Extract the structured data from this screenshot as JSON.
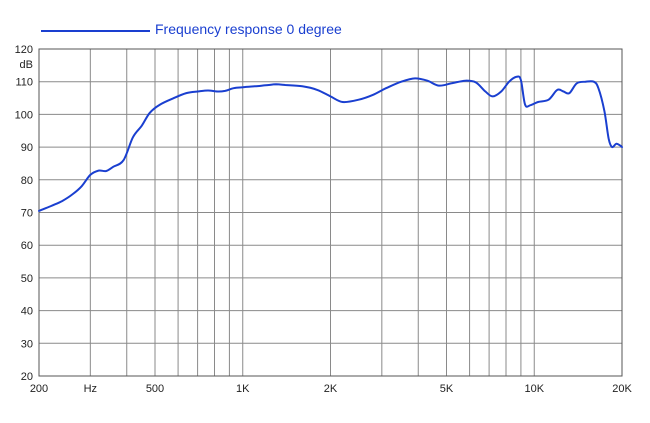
{
  "chart_data": {
    "type": "line",
    "title": "",
    "xlabel": "",
    "ylabel": "",
    "x_scale": "log",
    "y_unit_label": "dB",
    "xlim": [
      200,
      20000
    ],
    "ylim": [
      20,
      120
    ],
    "grid": true,
    "legend_position": "top-left",
    "accent_color": "#1a3fd0",
    "x_ticks": [
      {
        "value": 200,
        "label": "200"
      },
      {
        "value": 300,
        "label": "Hz"
      },
      {
        "value": 500,
        "label": "500"
      },
      {
        "value": 1000,
        "label": "1K"
      },
      {
        "value": 2000,
        "label": "2K"
      },
      {
        "value": 5000,
        "label": "5K"
      },
      {
        "value": 10000,
        "label": "10K"
      },
      {
        "value": 20000,
        "label": "20K"
      }
    ],
    "x_gridlines": [
      300,
      400,
      500,
      600,
      700,
      800,
      900,
      1000,
      2000,
      3000,
      4000,
      5000,
      6000,
      7000,
      8000,
      9000,
      10000
    ],
    "y_ticks": [
      20,
      30,
      40,
      50,
      60,
      70,
      80,
      90,
      100,
      110,
      120
    ],
    "series": [
      {
        "name": "Frequency response 0 degree",
        "color": "#1a3fd0",
        "points": [
          [
            200,
            70.5
          ],
          [
            220,
            72.0
          ],
          [
            240,
            73.5
          ],
          [
            260,
            75.5
          ],
          [
            280,
            78.0
          ],
          [
            300,
            81.5
          ],
          [
            320,
            82.8
          ],
          [
            340,
            82.7
          ],
          [
            360,
            84.0
          ],
          [
            390,
            86.0
          ],
          [
            420,
            93.0
          ],
          [
            450,
            96.5
          ],
          [
            480,
            100.5
          ],
          [
            520,
            103.0
          ],
          [
            580,
            105.0
          ],
          [
            640,
            106.5
          ],
          [
            700,
            107.0
          ],
          [
            760,
            107.3
          ],
          [
            820,
            107.0
          ],
          [
            870,
            107.2
          ],
          [
            930,
            108.0
          ],
          [
            1000,
            108.3
          ],
          [
            1100,
            108.6
          ],
          [
            1200,
            108.9
          ],
          [
            1300,
            109.2
          ],
          [
            1400,
            109.0
          ],
          [
            1600,
            108.6
          ],
          [
            1800,
            107.5
          ],
          [
            2000,
            105.5
          ],
          [
            2200,
            103.8
          ],
          [
            2500,
            104.5
          ],
          [
            2800,
            106.0
          ],
          [
            3100,
            108.0
          ],
          [
            3500,
            110.0
          ],
          [
            3900,
            111.0
          ],
          [
            4300,
            110.3
          ],
          [
            4700,
            108.8
          ],
          [
            5200,
            109.5
          ],
          [
            5800,
            110.3
          ],
          [
            6300,
            109.8
          ],
          [
            6800,
            107.0
          ],
          [
            7200,
            105.5
          ],
          [
            7700,
            107.0
          ],
          [
            8200,
            110.0
          ],
          [
            8700,
            111.5
          ],
          [
            9000,
            110.5
          ],
          [
            9300,
            103.0
          ],
          [
            9700,
            102.8
          ],
          [
            10300,
            103.8
          ],
          [
            11200,
            104.5
          ],
          [
            12000,
            107.5
          ],
          [
            12600,
            107.0
          ],
          [
            13200,
            106.5
          ],
          [
            14000,
            109.5
          ],
          [
            15000,
            110.0
          ],
          [
            16000,
            110.0
          ],
          [
            16600,
            108.0
          ],
          [
            17400,
            101.0
          ],
          [
            18000,
            92.5
          ],
          [
            18500,
            90.0
          ],
          [
            19100,
            91.0
          ],
          [
            19700,
            90.5
          ],
          [
            20000,
            90.0
          ]
        ]
      }
    ]
  }
}
